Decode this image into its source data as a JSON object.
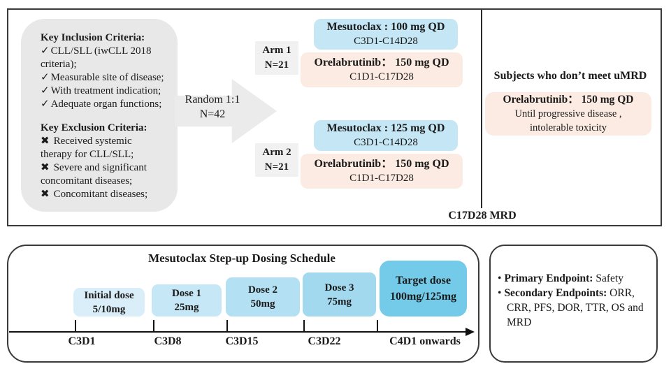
{
  "colors": {
    "mesutoclax_blue": "#c5e6f4",
    "orelabrutinib_pink": "#fcebe2",
    "criteria_gray": "#e8e8e8",
    "arm_label_gray": "#f1f1f1",
    "arrow_gray": "#ebebeb",
    "target_dose_blue": "#74cbe9"
  },
  "criteria": {
    "check_icon": "✓",
    "cross_icon": "✖",
    "inclusion_title": "Key Inclusion Criteria:",
    "inclusion_items": [
      "CLL/SLL (iwCLL 2018\ncriteria);",
      "Measurable site of disease;",
      "With treatment indication;",
      "Adequate organ functions;"
    ],
    "exclusion_title": "Key Exclusion Criteria:",
    "exclusion_items": [
      "Received systemic\ntherapy for CLL/SLL;",
      "Severe and significant\nconcomitant diseases;",
      "Concomitant diseases;"
    ]
  },
  "randomization": {
    "line1": "Random 1:1",
    "line2": "N=42"
  },
  "arms": [
    {
      "name": "Arm 1",
      "n": "N=21",
      "mesutoclax_line1": "Mesutoclax : 100 mg QD",
      "mesutoclax_line2": "C3D1-C14D28",
      "orelabrutinib_line1": "Orelabrutinib： 150 mg QD",
      "orelabrutinib_line2": "C1D1-C17D28"
    },
    {
      "name": "Arm 2",
      "n": "N=21",
      "mesutoclax_line1": "Mesutoclax : 125 mg QD",
      "mesutoclax_line2": "C3D1-C14D28",
      "orelabrutinib_line1": "Orelabrutinib： 150 mg QD",
      "orelabrutinib_line2": "C1D1-C17D28"
    }
  ],
  "umrd": {
    "header": "Subjects who don’t meet uMRD",
    "box_line1": "Orelabrutinib： 150 mg QD",
    "box_line2": "Until progressive disease ,",
    "box_line3": "intolerable toxicity"
  },
  "mrd_label": "C17D28 MRD",
  "dosing": {
    "title": "Mesutoclax Step-up Dosing Schedule",
    "steps": [
      {
        "line1": "Initial dose",
        "line2": "5/10mg",
        "tick": "C3D1",
        "color": "#daeef9"
      },
      {
        "line1": "Dose 1",
        "line2": "25mg",
        "tick": "C3D8",
        "color": "#c6e7f5"
      },
      {
        "line1": "Dose 2",
        "line2": "50mg",
        "tick": "C3D15",
        "color": "#b3e0f2"
      },
      {
        "line1": "Dose 3",
        "line2": "75mg",
        "tick": "C3D22",
        "color": "#a2d9ef"
      },
      {
        "line1": "Target dose",
        "line2": "100mg/125mg",
        "tick": "C4D1 onwards",
        "color": "#74cbe9"
      }
    ]
  },
  "endpoints": {
    "bullet": "•",
    "primary_label": "Primary Endpoint:",
    "primary_value": " Safety",
    "secondary_label": "Secondary Endpoints:",
    "secondary_value": " ORR, CRR, PFS, DOR, TTR, OS and MRD"
  }
}
